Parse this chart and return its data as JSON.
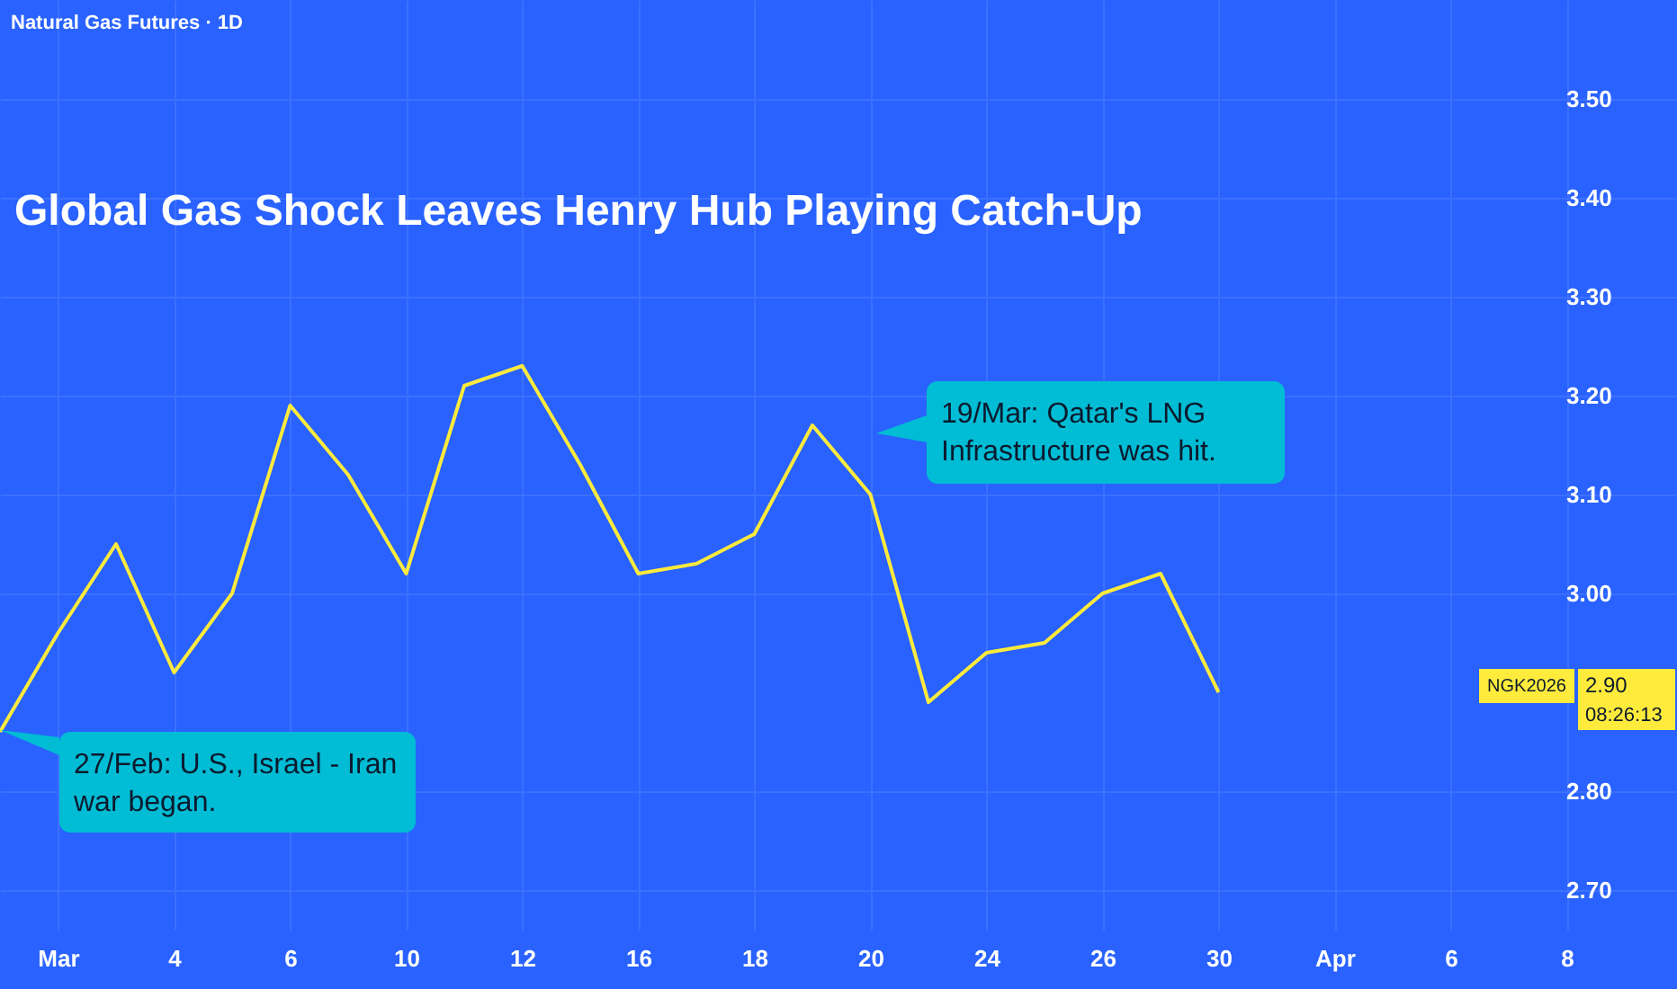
{
  "chart_data": {
    "type": "line",
    "title": "Global Gas Shock Leaves Henry Hub Playing Catch-Up",
    "subtitle": "Natural Gas Futures · 1D",
    "categories": [
      null,
      "Mar",
      null,
      "4",
      null,
      "6",
      null,
      "10",
      null,
      "12",
      null,
      "16",
      null,
      "18",
      null,
      "20",
      null,
      "24",
      null,
      "26",
      null,
      "30",
      null,
      "Apr",
      null,
      "6",
      null,
      "8",
      null
    ],
    "series": [
      {
        "color": "#ffeb3b",
        "values": [
          2.86,
          2.96,
          3.05,
          2.92,
          3.0,
          3.19,
          3.12,
          3.02,
          3.21,
          3.23,
          3.13,
          3.02,
          3.03,
          3.06,
          3.17,
          3.1,
          2.89,
          2.94,
          2.95,
          3.0,
          3.02,
          2.9,
          null,
          null,
          null,
          null,
          null,
          null,
          null
        ]
      }
    ],
    "ylim": [
      2.66,
      3.6
    ],
    "yticks": [
      {
        "value": 2.7,
        "label": "2.70"
      },
      {
        "value": 2.8,
        "label": "2.80"
      },
      {
        "value": 3.0,
        "label": "3.00"
      },
      {
        "value": 3.1,
        "label": "3.10"
      },
      {
        "value": 3.2,
        "label": "3.20"
      },
      {
        "value": 3.3,
        "label": "3.30"
      },
      {
        "value": 3.4,
        "label": "3.40"
      },
      {
        "value": 3.5,
        "label": "3.50"
      }
    ],
    "grid": true,
    "line_style": "solid",
    "annotations": [
      "27/Feb: U.S., Israel - Iran war began.",
      "19/Mar: Qatar's LNG Infrastructure was hit.",
      "NGK2026",
      "2.90",
      "08:26:13"
    ]
  }
}
